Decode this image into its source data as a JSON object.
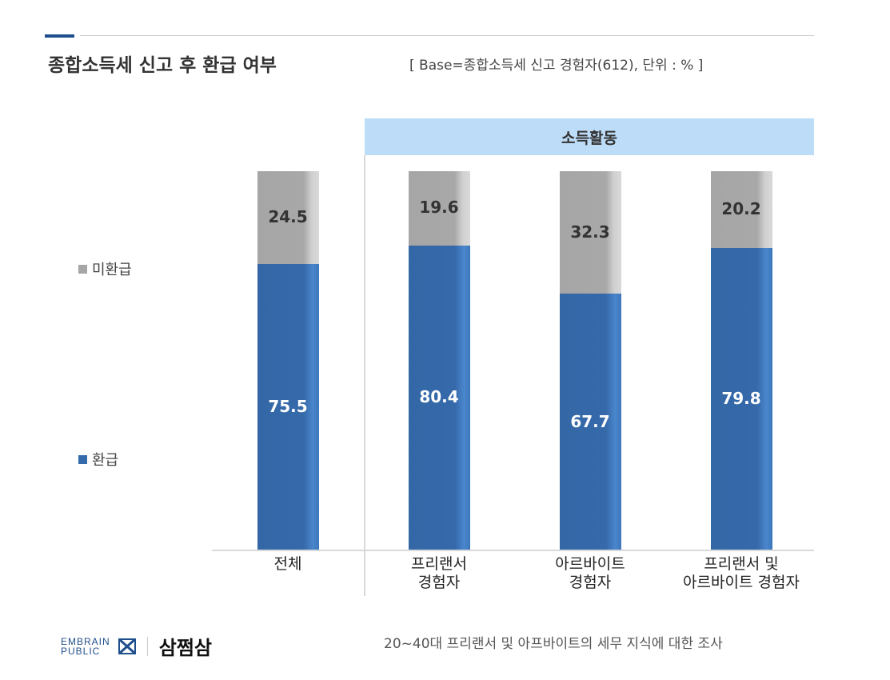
{
  "header": {
    "title": "종합소득세 신고 후 환급 여부",
    "base_note": "[ Base=종합소득세 신고 경험자(612), 단위 : % ]"
  },
  "chart_data": {
    "type": "bar",
    "stacked": true,
    "percent": true,
    "group_label": "소득활동",
    "categories": [
      "전체",
      "프리랜서\n경험자",
      "아르바이트\n경험자",
      "프리랜서 및\n아르바이트 경험자"
    ],
    "series": [
      {
        "name": "환급",
        "color": "#356bab",
        "values": [
          75.5,
          80.4,
          67.7,
          79.8
        ]
      },
      {
        "name": "미환급",
        "color": "#a6a6a6",
        "values": [
          24.5,
          19.6,
          32.3,
          20.2
        ]
      }
    ],
    "ylim": [
      0,
      100
    ],
    "grid": false,
    "legend": "left"
  },
  "legend": {
    "items": [
      {
        "label": "미환급",
        "color": "#a6a6a6"
      },
      {
        "label": "환급",
        "color": "#356bab"
      }
    ]
  },
  "footer": {
    "logo_line1": "EMBRAIN",
    "logo_line2": "PUBLIC",
    "brand": "삼쩜삼",
    "survey": "20~40대 프리랜서 및 아프바이트의 세무 지식에 대한 조사"
  }
}
